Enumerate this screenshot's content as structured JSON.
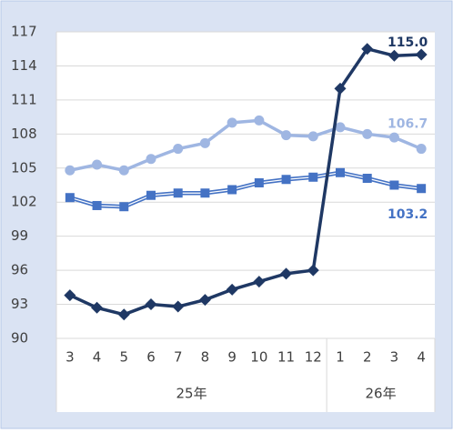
{
  "chart_data": {
    "type": "line",
    "groups": [
      {
        "label": "25年",
        "categories": [
          "3",
          "4",
          "5",
          "6",
          "7",
          "8",
          "9",
          "10",
          "11",
          "12"
        ]
      },
      {
        "label": "26年",
        "categories": [
          "1",
          "2",
          "3",
          "4"
        ]
      }
    ],
    "series": [
      {
        "color": "#9fb6e2",
        "marker": "circle",
        "values": [
          104.8,
          105.3,
          104.8,
          105.8,
          106.7,
          107.2,
          109.0,
          109.2,
          107.9,
          107.8,
          108.6,
          108.0,
          107.7,
          106.7
        ],
        "value_labels": [
          null,
          null,
          null,
          null,
          null,
          null,
          null,
          null,
          null,
          null,
          null,
          null,
          null,
          "106.7"
        ]
      },
      {
        "color": "#4472c4",
        "marker": "square",
        "values": [
          102.4,
          101.7,
          101.6,
          102.6,
          102.8,
          102.8,
          103.1,
          103.7,
          104.0,
          104.2,
          104.6,
          104.1,
          103.5,
          103.2
        ],
        "value_labels": [
          null,
          null,
          null,
          null,
          null,
          null,
          null,
          null,
          null,
          null,
          null,
          null,
          null,
          "103.2"
        ]
      },
      {
        "color": "#1f3864",
        "marker": "diamond",
        "values": [
          93.8,
          92.7,
          92.1,
          93.0,
          92.8,
          93.4,
          94.3,
          95.0,
          95.7,
          96.0,
          112.0,
          115.5,
          114.9,
          115.0
        ],
        "value_labels": [
          null,
          null,
          null,
          null,
          null,
          null,
          null,
          null,
          null,
          null,
          null,
          null,
          null,
          "115.0"
        ]
      }
    ],
    "ylim": [
      90,
      117
    ],
    "yticks": [
      90,
      93,
      96,
      99,
      102,
      105,
      108,
      111,
      114,
      117
    ],
    "grid": true
  }
}
